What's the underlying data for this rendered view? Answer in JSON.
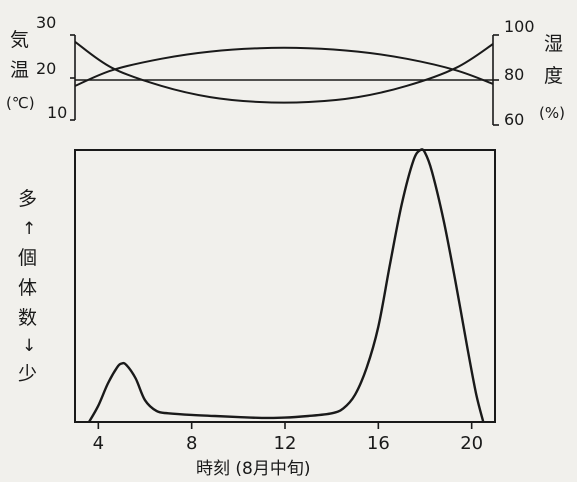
{
  "chart_data": [
    {
      "type": "line",
      "left_axis_label": [
        "気",
        "温",
        "(℃)"
      ],
      "right_axis_label": [
        "湿",
        "度",
        "(%)"
      ],
      "left_ticks": [
        30,
        20,
        10
      ],
      "right_ticks": [
        100,
        80,
        60
      ],
      "left_ylim": [
        10,
        30
      ],
      "right_ylim": [
        60,
        100
      ],
      "x": [
        3.5,
        5,
        7,
        9,
        11,
        13,
        15,
        17,
        19,
        20.5
      ],
      "series": [
        {
          "values": [
            18.0,
            21.7,
            24.4,
            26.1,
            26.9,
            26.9,
            26.1,
            24.4,
            21.7,
            18.5
          ]
        },
        {
          "values": [
            97.0,
            85.4,
            77.4,
            72.4,
            70.2,
            70.2,
            72.4,
            77.4,
            85.4,
            96.0
          ]
        }
      ],
      "reference_line": 80
    },
    {
      "type": "line",
      "ylabel": [
        "多",
        "↑",
        "個",
        "体",
        "数",
        "↓",
        "少"
      ],
      "xlabel": "時刻 (8月中旬)",
      "x_ticks": [
        4,
        8,
        12,
        16,
        20
      ],
      "xlim": [
        3,
        21
      ],
      "ylim": [
        0,
        100
      ],
      "x": [
        3.6,
        4.0,
        4.4,
        4.8,
        5.0,
        5.2,
        5.6,
        6.0,
        6.5,
        7.0,
        8.0,
        9.0,
        10.0,
        11.0,
        12.0,
        13.0,
        14.0,
        14.5,
        15.0,
        15.5,
        16.0,
        16.5,
        17.0,
        17.5,
        17.8,
        18.0,
        18.3,
        18.8,
        19.3,
        19.8,
        20.2,
        20.5
      ],
      "values": [
        0,
        6,
        14,
        20,
        21.5,
        21,
        16,
        8,
        4,
        3.2,
        2.6,
        2.2,
        1.8,
        1.5,
        1.6,
        2.2,
        3.2,
        5,
        10,
        20,
        35,
        58,
        80,
        96,
        100,
        99,
        92,
        74,
        52,
        28,
        10,
        0
      ]
    }
  ]
}
